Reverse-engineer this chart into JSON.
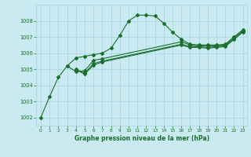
{
  "title": "Graphe pression niveau de la mer (hPa)",
  "background_color": "#c8eaf0",
  "grid_color": "#a8d4dc",
  "line_color": "#1a6e2e",
  "xlim": [
    -0.5,
    23.5
  ],
  "ylim": [
    1001.5,
    1009.0
  ],
  "yticks": [
    1002,
    1003,
    1004,
    1005,
    1006,
    1007,
    1008
  ],
  "xticks": [
    0,
    1,
    2,
    3,
    4,
    5,
    6,
    7,
    8,
    9,
    10,
    11,
    12,
    13,
    14,
    15,
    16,
    17,
    18,
    19,
    20,
    21,
    22,
    23
  ],
  "series1_x": [
    0,
    1,
    2,
    3,
    4,
    5,
    6,
    7,
    8,
    9,
    10,
    11,
    12,
    13,
    14,
    15,
    16,
    17,
    18,
    19,
    20,
    21,
    22,
    23
  ],
  "series1_y": [
    1002.0,
    1003.3,
    1004.5,
    1005.2,
    1005.7,
    1005.8,
    1005.9,
    1006.0,
    1006.3,
    1007.1,
    1008.0,
    1008.35,
    1008.35,
    1008.3,
    1007.85,
    1007.3,
    1006.85,
    1006.55,
    1006.5,
    1006.5,
    1006.5,
    1006.55,
    1007.0,
    1007.45
  ],
  "series2_x": [
    3,
    4,
    5,
    6,
    7,
    16,
    17,
    18,
    19,
    20,
    21,
    22,
    23
  ],
  "series2_y": [
    1005.2,
    1004.85,
    1004.9,
    1005.55,
    1005.65,
    1006.7,
    1006.5,
    1006.45,
    1006.45,
    1006.45,
    1006.5,
    1007.0,
    1007.4
  ],
  "series3_x": [
    4,
    5,
    6,
    7,
    16,
    17,
    18,
    19,
    20,
    21,
    22,
    23
  ],
  "series3_y": [
    1005.0,
    1004.75,
    1005.35,
    1005.5,
    1006.55,
    1006.4,
    1006.4,
    1006.35,
    1006.4,
    1006.45,
    1006.9,
    1007.35
  ],
  "series4_x": [
    4,
    5,
    6,
    7,
    16,
    17,
    18,
    19,
    20,
    21,
    22,
    23
  ],
  "series4_y": [
    1004.95,
    1004.7,
    1005.25,
    1005.45,
    1006.5,
    1006.35,
    1006.35,
    1006.3,
    1006.35,
    1006.4,
    1006.85,
    1007.3
  ]
}
